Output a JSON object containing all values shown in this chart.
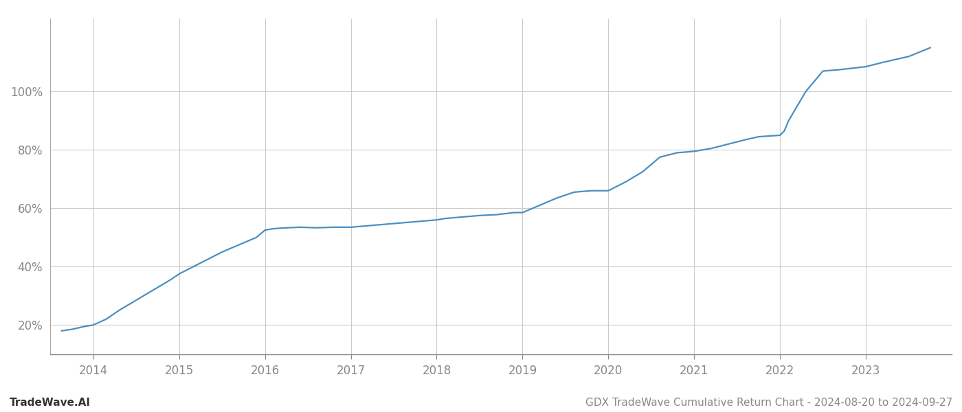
{
  "title": "GDX TradeWave Cumulative Return Chart - 2024-08-20 to 2024-09-27",
  "watermark": "TradeWave.AI",
  "line_color": "#4a8fc0",
  "background_color": "#ffffff",
  "grid_color": "#cccccc",
  "x_years": [
    2013.63,
    2013.75,
    2013.9,
    2014.0,
    2014.15,
    2014.3,
    2014.5,
    2014.7,
    2014.9,
    2015.0,
    2015.1,
    2015.3,
    2015.5,
    2015.7,
    2015.9,
    2016.0,
    2016.1,
    2016.2,
    2016.4,
    2016.6,
    2016.8,
    2017.0,
    2017.2,
    2017.4,
    2017.6,
    2017.8,
    2018.0,
    2018.1,
    2018.3,
    2018.5,
    2018.7,
    2018.9,
    2019.0,
    2019.2,
    2019.4,
    2019.6,
    2019.8,
    2020.0,
    2020.2,
    2020.4,
    2020.6,
    2020.8,
    2021.0,
    2021.2,
    2021.4,
    2021.6,
    2021.75,
    2021.9,
    2022.0,
    2022.05,
    2022.1,
    2022.3,
    2022.5,
    2022.7,
    2023.0,
    2023.2,
    2023.5,
    2023.75
  ],
  "y_values": [
    18.0,
    18.5,
    19.5,
    20.0,
    22.0,
    25.0,
    28.5,
    32.0,
    35.5,
    37.5,
    39.0,
    42.0,
    45.0,
    47.5,
    50.0,
    52.5,
    53.0,
    53.2,
    53.5,
    53.3,
    53.5,
    53.5,
    54.0,
    54.5,
    55.0,
    55.5,
    56.0,
    56.5,
    57.0,
    57.5,
    57.8,
    58.5,
    58.5,
    61.0,
    63.5,
    65.5,
    66.0,
    66.0,
    69.0,
    72.5,
    77.5,
    79.0,
    79.5,
    80.5,
    82.0,
    83.5,
    84.5,
    84.8,
    85.0,
    86.5,
    90.0,
    100.0,
    107.0,
    107.5,
    108.5,
    110.0,
    112.0,
    115.0
  ],
  "xlim": [
    2013.5,
    2024.0
  ],
  "ylim": [
    10,
    125
  ],
  "yticks": [
    20,
    40,
    60,
    80,
    100
  ],
  "xticks": [
    2014,
    2015,
    2016,
    2017,
    2018,
    2019,
    2020,
    2021,
    2022,
    2023
  ],
  "title_fontsize": 11,
  "watermark_fontsize": 11,
  "tick_fontsize": 12,
  "line_width": 1.6
}
